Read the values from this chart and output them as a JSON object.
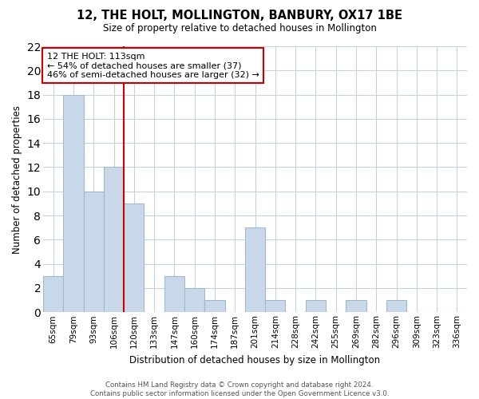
{
  "title": "12, THE HOLT, MOLLINGTON, BANBURY, OX17 1BE",
  "subtitle": "Size of property relative to detached houses in Mollington",
  "xlabel": "Distribution of detached houses by size in Mollington",
  "ylabel": "Number of detached properties",
  "categories": [
    "65sqm",
    "79sqm",
    "93sqm",
    "106sqm",
    "120sqm",
    "133sqm",
    "147sqm",
    "160sqm",
    "174sqm",
    "187sqm",
    "201sqm",
    "214sqm",
    "228sqm",
    "242sqm",
    "255sqm",
    "269sqm",
    "282sqm",
    "296sqm",
    "309sqm",
    "323sqm",
    "336sqm"
  ],
  "values": [
    3,
    18,
    10,
    12,
    9,
    0,
    3,
    2,
    1,
    0,
    7,
    1,
    0,
    1,
    0,
    1,
    0,
    1,
    0,
    0,
    0
  ],
  "bar_color": "#c8d8e8",
  "bar_edge_color": "#a0b8cc",
  "vline_x": 4,
  "vline_color": "#cc0000",
  "annotation_line1": "12 THE HOLT: 113sqm",
  "annotation_line2": "← 54% of detached houses are smaller (37)",
  "annotation_line3": "46% of semi-detached houses are larger (32) →",
  "annotation_box_color": "#ffffff",
  "annotation_box_edge": "#cc0000",
  "ylim": [
    0,
    22
  ],
  "yticks": [
    0,
    2,
    4,
    6,
    8,
    10,
    12,
    14,
    16,
    18,
    20,
    22
  ],
  "footer": "Contains HM Land Registry data © Crown copyright and database right 2024.\nContains public sector information licensed under the Open Government Licence v3.0.",
  "bg_color": "#ffffff",
  "grid_color": "#c0d0e0"
}
